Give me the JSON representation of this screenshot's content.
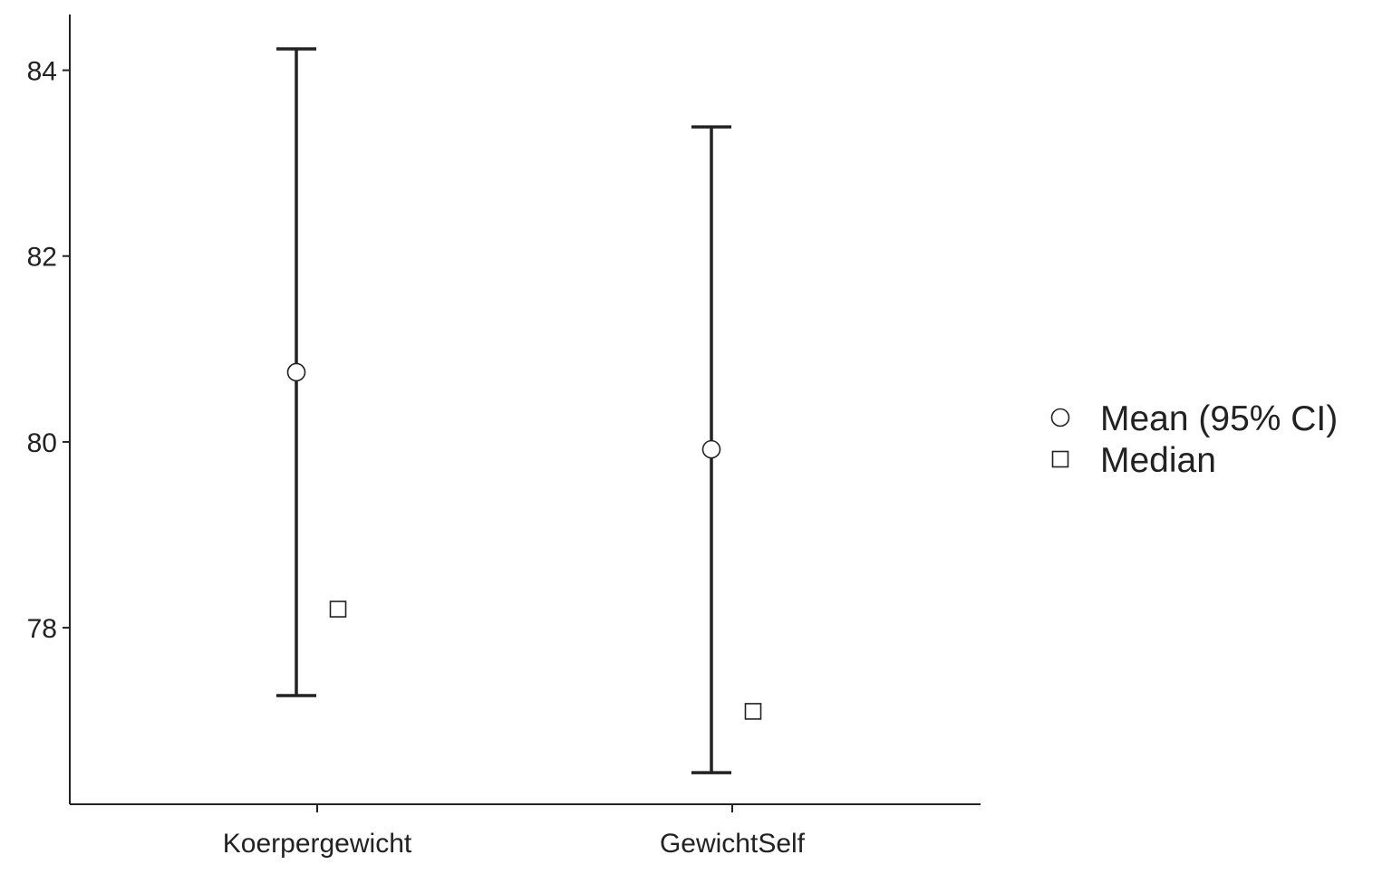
{
  "chart_data": {
    "type": "scatter",
    "title": "",
    "xlabel": "",
    "ylabel": "",
    "categories": [
      "Koerpergewicht",
      "GewichtSelf"
    ],
    "ylim": [
      76.1,
      84.6
    ],
    "yticks": [
      78,
      80,
      82,
      84
    ],
    "series": [
      {
        "name": "Mean (95% CI)",
        "marker": "circle",
        "values": [
          80.75,
          79.92
        ],
        "ci_lower": [
          77.27,
          76.44
        ],
        "ci_upper": [
          84.23,
          83.39
        ]
      },
      {
        "name": "Median",
        "marker": "square",
        "values": [
          78.2,
          77.1
        ]
      }
    ],
    "legend": {
      "position": "right",
      "entries": [
        "Mean (95% CI)",
        "Median"
      ]
    },
    "grid": false,
    "colors": {
      "axis": "#222222",
      "marker_fill": "#ffffff",
      "marker_stroke": "#222222"
    }
  }
}
